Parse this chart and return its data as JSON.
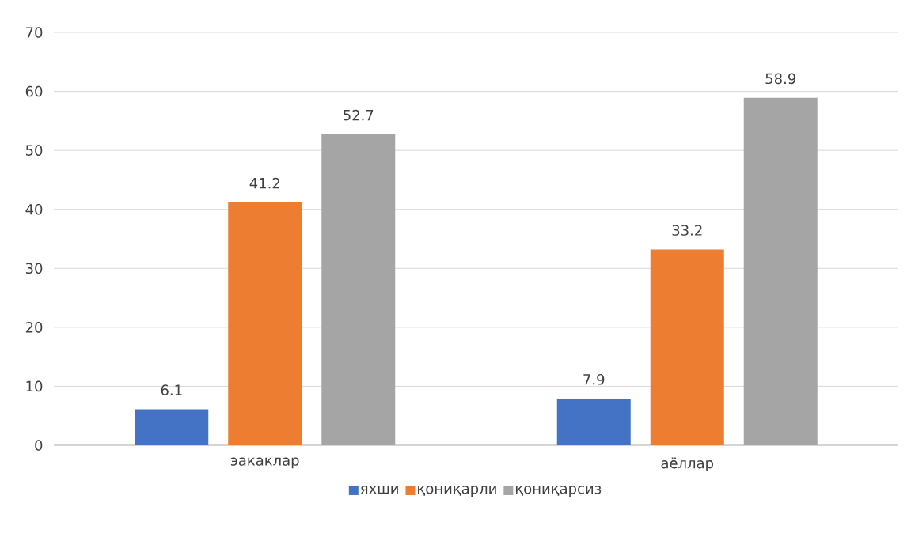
{
  "chart_data": {
    "type": "bar",
    "categories": [
      "эакаклар",
      "аёллар"
    ],
    "series": [
      {
        "name": "яхши",
        "color": "#4472c4",
        "values": [
          6.1,
          7.9
        ]
      },
      {
        "name": "қониқарли",
        "color": "#ed7d31",
        "values": [
          41.2,
          33.2
        ]
      },
      {
        "name": "қониқарсиз",
        "color": "#a5a5a5",
        "values": [
          52.7,
          58.9
        ]
      }
    ],
    "ylim": [
      0,
      70
    ],
    "yticks": [
      0,
      10,
      20,
      30,
      40,
      50,
      60,
      70
    ],
    "grid": "y",
    "legend": "bottom",
    "data_labels": true
  }
}
